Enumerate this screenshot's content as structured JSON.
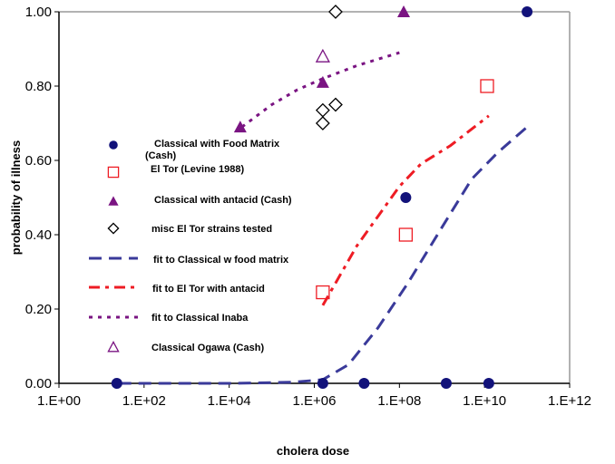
{
  "chart_data": {
    "type": "scatter",
    "title": "",
    "xlabel": "cholera dose",
    "ylabel": "probability of illness",
    "xscale": "log10",
    "xlim_log10": [
      0,
      12
    ],
    "ylim": [
      0,
      1
    ],
    "x_tick_labels": [
      "1.E+00",
      "1.E+02",
      "1.E+04",
      "1.E+06",
      "1.E+08",
      "1.E+10",
      "1.E+12"
    ],
    "y_tick_labels": [
      "0.00",
      "0.20",
      "0.40",
      "0.60",
      "0.80",
      "1.00"
    ],
    "legend_position": "inside-left",
    "colors": {
      "navy": "#1a1a80",
      "red": "#ee1c24",
      "purple": "#7a1482",
      "black": "#000000",
      "blueline": "#3a3a9a"
    },
    "series": [
      {
        "name": "Classical with Food Matrix (Cash)",
        "kind": "marker",
        "marker": "filled-circle",
        "color": "#12127a",
        "points_log10x": [
          [
            1.36,
            0
          ],
          [
            6.2,
            0
          ],
          [
            7.17,
            0
          ],
          [
            8.15,
            0.5
          ],
          [
            9.1,
            0
          ],
          [
            10.1,
            0
          ],
          [
            11.0,
            1.0
          ]
        ]
      },
      {
        "name": "El Tor (Levine 1988)",
        "kind": "marker",
        "marker": "open-square",
        "color": "#ee1c24",
        "points_log10x": [
          [
            6.2,
            0.245
          ],
          [
            8.15,
            0.4
          ],
          [
            10.06,
            0.8
          ]
        ]
      },
      {
        "name": "Classical with antacid (Cash)",
        "kind": "marker",
        "marker": "filled-triangle",
        "color": "#7a1482",
        "points_log10x": [
          [
            4.26,
            0.69
          ],
          [
            6.2,
            0.81
          ],
          [
            8.1,
            1.0
          ]
        ]
      },
      {
        "name": "misc El Tor strains tested",
        "kind": "marker",
        "marker": "open-diamond",
        "color": "#000000",
        "points_log10x": [
          [
            6.2,
            0.7
          ],
          [
            6.2,
            0.735
          ],
          [
            6.5,
            0.75
          ],
          [
            6.5,
            1.0
          ]
        ]
      },
      {
        "name": "fit to Classical w food matrix",
        "kind": "line",
        "dash": "long",
        "color": "#3a3a9a",
        "points_log10x": [
          [
            1.4,
            0
          ],
          [
            4,
            0
          ],
          [
            5.5,
            0.003
          ],
          [
            6.2,
            0.01
          ],
          [
            6.8,
            0.05
          ],
          [
            7.5,
            0.15
          ],
          [
            8.2,
            0.27
          ],
          [
            9,
            0.42
          ],
          [
            9.7,
            0.55
          ],
          [
            10.3,
            0.62
          ],
          [
            11,
            0.69
          ]
        ]
      },
      {
        "name": "fit to El Tor with antacid",
        "kind": "line",
        "dash": "long-short",
        "color": "#ee1c24",
        "points_log10x": [
          [
            6.2,
            0.21
          ],
          [
            7,
            0.37
          ],
          [
            7.5,
            0.45
          ],
          [
            8,
            0.53
          ],
          [
            8.5,
            0.59
          ],
          [
            9.2,
            0.64
          ],
          [
            10.1,
            0.72
          ]
        ]
      },
      {
        "name": "fit to Classical Inaba",
        "kind": "line",
        "dash": "dot",
        "color": "#7a1482",
        "points_log10x": [
          [
            4.3,
            0.69
          ],
          [
            5,
            0.75
          ],
          [
            5.6,
            0.79
          ],
          [
            6.2,
            0.82
          ],
          [
            7,
            0.855
          ],
          [
            8,
            0.89
          ]
        ]
      },
      {
        "name": "Classical Ogawa (Cash)",
        "kind": "marker",
        "marker": "open-triangle",
        "color": "#7a1482",
        "points_log10x": [
          [
            6.2,
            0.88
          ]
        ]
      }
    ],
    "legend_labels": [
      "Classical with Food Matrix",
      "(Cash)",
      "El Tor (Levine 1988)",
      "Classical with antacid (Cash)",
      "misc El Tor strains tested",
      "fit to Classical w food matrix",
      "fit to El Tor with antacid",
      "fit to Classical Inaba",
      "Classical Ogawa (Cash)"
    ]
  }
}
